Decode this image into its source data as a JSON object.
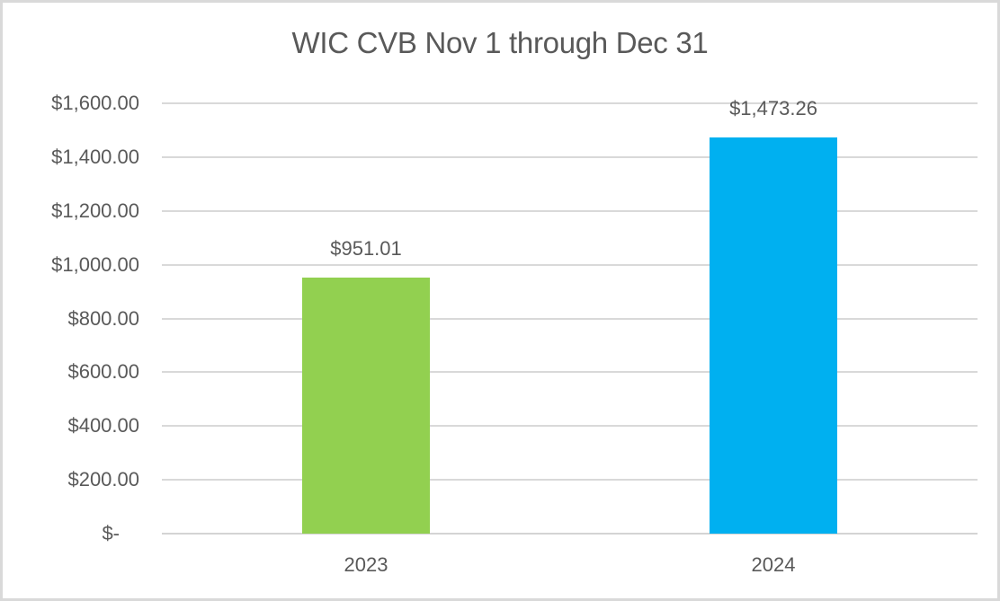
{
  "chart_data": {
    "type": "bar",
    "title": "WIC CVB Nov 1 through Dec 31",
    "categories": [
      "2023",
      "2024"
    ],
    "values": [
      951.01,
      1473.26
    ],
    "data_labels": [
      "$951.01",
      "$1,473.26"
    ],
    "bar_colors": [
      "#92D050",
      "#00B0F0"
    ],
    "y_ticks": [
      {
        "value": 0,
        "label": "$-"
      },
      {
        "value": 200,
        "label": "$200.00"
      },
      {
        "value": 400,
        "label": "$400.00"
      },
      {
        "value": 600,
        "label": "$600.00"
      },
      {
        "value": 800,
        "label": "$800.00"
      },
      {
        "value": 1000,
        "label": "$1,000.00"
      },
      {
        "value": 1200,
        "label": "$1,200.00"
      },
      {
        "value": 1400,
        "label": "$1,400.00"
      },
      {
        "value": 1600,
        "label": "$1,600.00"
      }
    ],
    "ylim": [
      0,
      1600
    ],
    "xlabel": "",
    "ylabel": "",
    "grid": true,
    "legend_position": "none",
    "text_color": "#595959",
    "gridline_color": "#D9D9D9",
    "axis_line_color": "#D4D4D4",
    "background_color": "#FFFFFF",
    "border_color": "#D9D9D9"
  }
}
